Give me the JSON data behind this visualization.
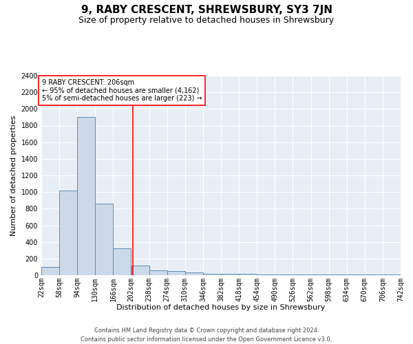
{
  "title": "9, RABY CRESCENT, SHREWSBURY, SY3 7JN",
  "subtitle": "Size of property relative to detached houses in Shrewsbury",
  "xlabel": "Distribution of detached houses by size in Shrewsbury",
  "ylabel": "Number of detached properties",
  "footnote1": "Contains HM Land Registry data © Crown copyright and database right 2024.",
  "footnote2": "Contains public sector information licensed under the Open Government Licence v3.0.",
  "annotation_line1": "9 RABY CRESCENT: 206sqm",
  "annotation_line2": "← 95% of detached houses are smaller (4,162)",
  "annotation_line3": "5% of semi-detached houses are larger (223) →",
  "bins": [
    22,
    58,
    94,
    130,
    166,
    202,
    238,
    274,
    310,
    346,
    382,
    418,
    454,
    490,
    526,
    562,
    598,
    634,
    670,
    706,
    742
  ],
  "bar_heights": [
    100,
    1020,
    1900,
    860,
    320,
    120,
    55,
    50,
    30,
    20,
    20,
    20,
    5,
    5,
    5,
    5,
    5,
    5,
    5,
    5
  ],
  "bar_color": "#ccd9e8",
  "bar_edge_color": "#5b8db8",
  "bg_color": "#e8eef5",
  "grid_color": "#ffffff",
  "red_line_x": 206,
  "ylim": [
    0,
    2400
  ],
  "yticks": [
    0,
    200,
    400,
    600,
    800,
    1000,
    1200,
    1400,
    1600,
    1800,
    2000,
    2200,
    2400
  ],
  "title_fontsize": 11,
  "subtitle_fontsize": 9,
  "ylabel_fontsize": 8,
  "xlabel_fontsize": 8,
  "tick_fontsize": 7,
  "footnote_fontsize": 6
}
